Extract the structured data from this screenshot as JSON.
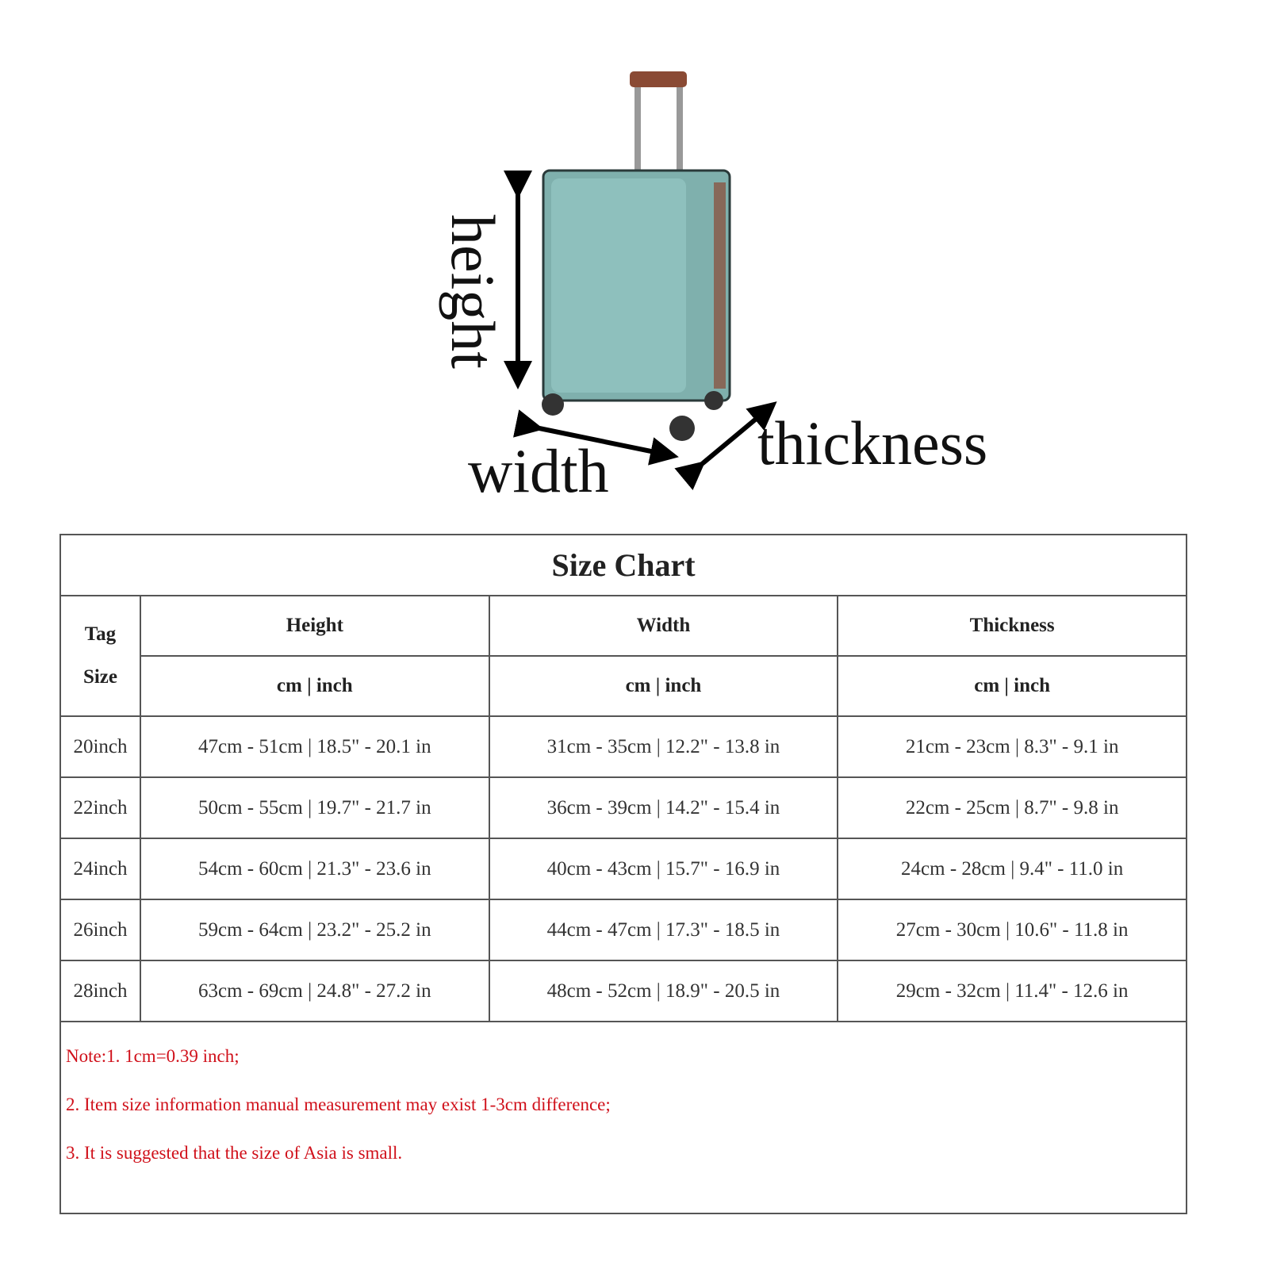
{
  "illustration": {
    "labels": {
      "height": "height",
      "width": "width",
      "thickness": "thickness"
    },
    "colors": {
      "body": "#7fb0ad",
      "trim": "#8a4a34",
      "arrow": "#000000"
    }
  },
  "table": {
    "title": "Size Chart",
    "tag_header": [
      "Tag",
      "Size"
    ],
    "columns": [
      "Height",
      "Width",
      "Thickness"
    ],
    "unit_header": "cm | inch",
    "rows": [
      {
        "size": "20inch",
        "height": "47cm - 51cm | 18.5\" - 20.1 in",
        "width": "31cm - 35cm | 12.2\" - 13.8 in",
        "thickness": "21cm - 23cm | 8.3\" - 9.1 in"
      },
      {
        "size": "22inch",
        "height": "50cm - 55cm | 19.7\" - 21.7 in",
        "width": "36cm - 39cm | 14.2\" - 15.4 in",
        "thickness": "22cm - 25cm | 8.7\" - 9.8 in"
      },
      {
        "size": "24inch",
        "height": "54cm - 60cm | 21.3\" - 23.6 in",
        "width": "40cm - 43cm | 15.7\" - 16.9 in",
        "thickness": "24cm - 28cm | 9.4\" - 11.0 in"
      },
      {
        "size": "26inch",
        "height": "59cm - 64cm | 23.2\" - 25.2 in",
        "width": "44cm - 47cm | 17.3\" - 18.5 in",
        "thickness": "27cm - 30cm | 10.6\" - 11.8 in"
      },
      {
        "size": "28inch",
        "height": "63cm - 69cm | 24.8\" - 27.2 in",
        "width": "48cm - 52cm | 18.9\" - 20.5 in",
        "thickness": "29cm - 32cm | 11.4\" - 12.6 in"
      }
    ]
  },
  "notes": [
    "Note:1.    1cm=0.39 inch;",
    "2.  Item size information manual measurement may exist 1-3cm difference;",
    "3.  It is suggested that the size of Asia is small."
  ],
  "note_color": "#d0101a"
}
